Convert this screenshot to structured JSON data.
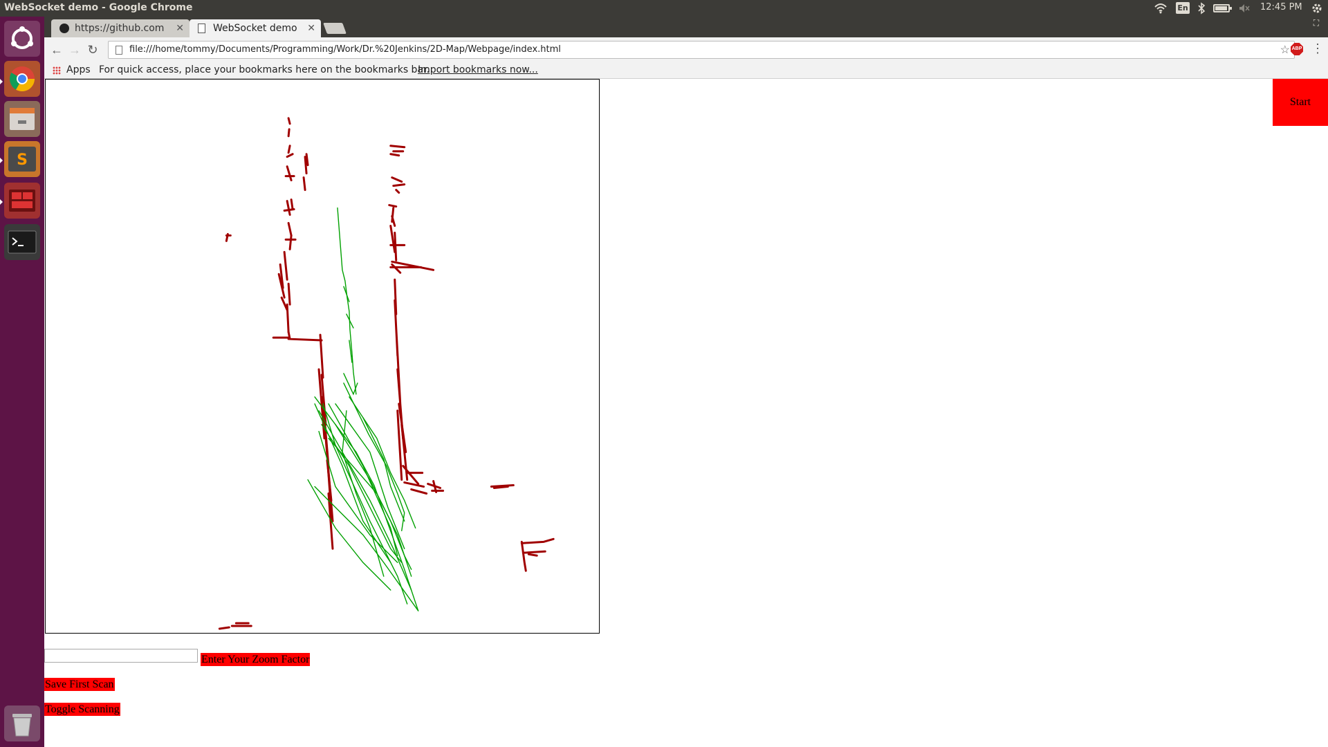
{
  "window": {
    "title": "WebSocket demo - Google Chrome"
  },
  "panel": {
    "clock": "12:45 PM",
    "language": "En",
    "battery_level": 0.85
  },
  "launcher": {
    "items": [
      "ubuntu-dash-icon",
      "chrome-icon",
      "files-icon",
      "sublime-text-icon",
      "app-icon",
      "terminal-icon",
      "trash-icon"
    ]
  },
  "tabs": [
    {
      "title": "https://github.com",
      "icon": "github-icon"
    },
    {
      "title": "WebSocket demo",
      "icon": "page-icon"
    }
  ],
  "address_bar": {
    "url": "file:///home/tommy/Documents/Programming/Work/Dr.%20Jenkins/2D-Map/Webpage/index.html"
  },
  "bookmarks_bar": {
    "apps_label": "Apps",
    "hint": "For quick access, place your bookmarks here on the bookmarks bar.",
    "import_link": "Import bookmarks now..."
  },
  "page": {
    "start_label": "Start",
    "zoom_input_value": "",
    "zoom_button_label": "Enter Your Zoom Factor",
    "save_scan_label": "Save First Scan",
    "toggle_scanning_label": "Toggle Scanning"
  },
  "colors": {
    "map_points": "#a00000",
    "scan_lines": "#00a000",
    "buttons": "#ff0000"
  }
}
